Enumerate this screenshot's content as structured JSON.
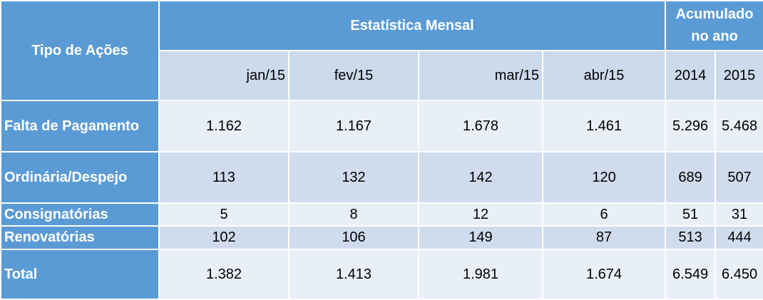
{
  "chart_data": {
    "type": "table",
    "header": {
      "row_label": "Tipo de Ações",
      "group_monthly": "Estatística Mensal",
      "group_accum": "Acumulado no ano",
      "months": [
        "jan/15",
        "fev/15",
        "mar/15",
        "abr/15"
      ],
      "years": [
        "2014",
        "2015"
      ]
    },
    "rows": [
      {
        "label": "Falta de Pagamento",
        "values": [
          "1.162",
          "1.167",
          "1.678",
          "1.461",
          "5.296",
          "5.468"
        ]
      },
      {
        "label": "Ordinária/Despejo",
        "values": [
          "113",
          "132",
          "142",
          "120",
          "689",
          "507"
        ]
      },
      {
        "label": "Consignatórias",
        "values": [
          "5",
          "8",
          "12",
          "6",
          "51",
          "31"
        ]
      },
      {
        "label": "Renovatórias",
        "values": [
          "102",
          "106",
          "149",
          "87",
          "513",
          "444"
        ]
      },
      {
        "label": "Total",
        "values": [
          "1.382",
          "1.413",
          "1.981",
          "1.674",
          "6.549",
          "6.450"
        ]
      }
    ]
  },
  "colors": {
    "header": "#5b9bd5",
    "subheader": "#ccdaec",
    "band_light": "#e9eff7",
    "band_dark": "#d0dcee",
    "header_text": "#ffffff"
  }
}
